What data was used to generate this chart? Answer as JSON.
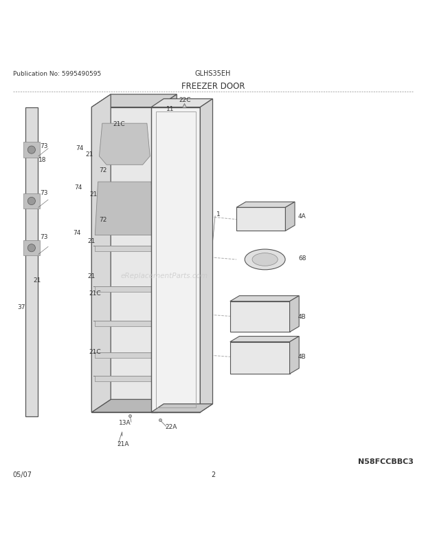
{
  "title_left": "Publication No: 5995490595",
  "title_center": "GLHS35EH",
  "section_title": "FREEZER DOOR",
  "bottom_left": "05/07",
  "bottom_center": "2",
  "bottom_right": "N58FCCBBC3",
  "watermark": "eReplacementParts.com",
  "bg_color": "#ffffff",
  "line_color": "#555555",
  "text_color": "#333333"
}
